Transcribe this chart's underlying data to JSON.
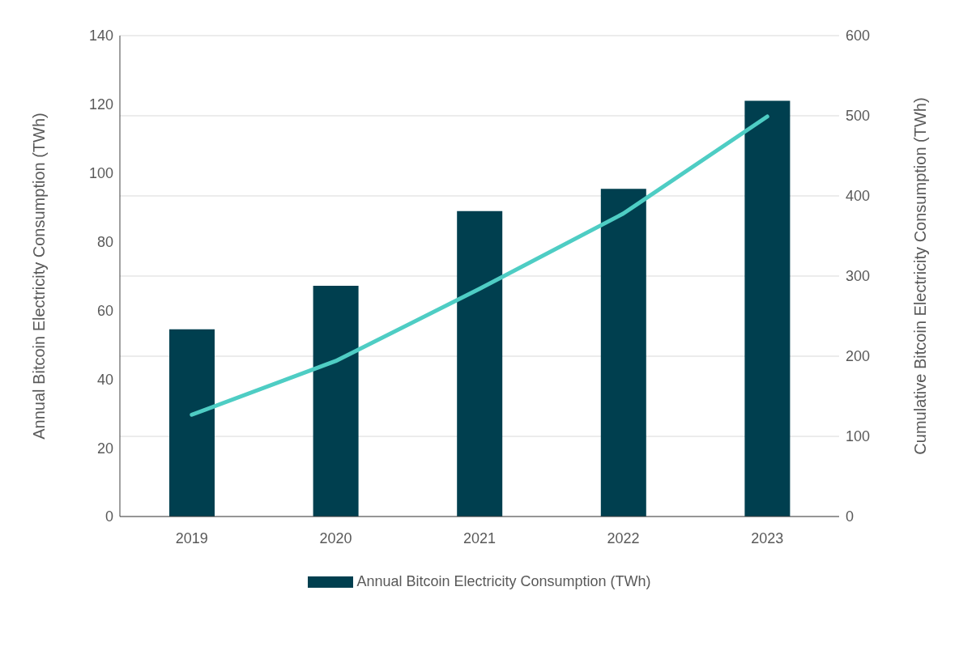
{
  "chart_data": {
    "type": "bar",
    "categories": [
      "2019",
      "2020",
      "2021",
      "2022",
      "2023"
    ],
    "ylabel": "Annual Bitcoin Electricity Consumption (TWh)",
    "y2label": "Cumulative Bitcoin Electricity Consumption (TWh)",
    "series": [
      {
        "name": "Annual Bitcoin Electricity Consumption (TWh)",
        "color": "#003f4f",
        "values": [
          54.5,
          67.2,
          88.9,
          95.4,
          121.0
        ]
      },
      {
        "type": "line",
        "axis": "y2",
        "color": "#4ecdc4",
        "values": [
          127,
          194,
          284,
          378,
          499
        ]
      }
    ],
    "ylim": [
      0,
      140
    ],
    "yticks": [
      0,
      20,
      40,
      60,
      80,
      100,
      120,
      140
    ],
    "y2lim": [
      0,
      600
    ],
    "y2ticks": [
      0,
      100,
      200,
      300,
      400,
      500,
      600
    ],
    "grid": "y",
    "legend": "bottom",
    "marker": "none",
    "line_style": "solid"
  }
}
